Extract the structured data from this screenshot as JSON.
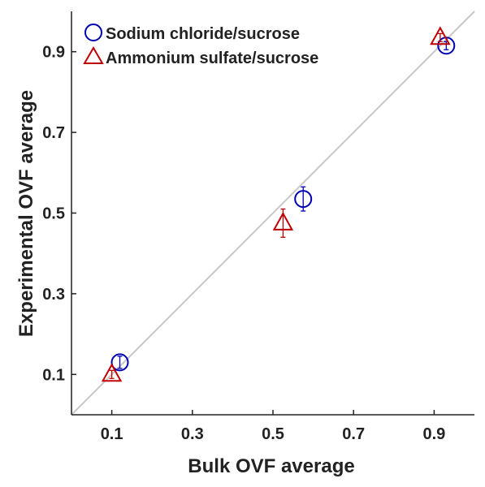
{
  "chart_data": {
    "type": "scatter",
    "xlabel": "Bulk OVF average",
    "ylabel": "Experimental  OVF  average",
    "xlim": [
      0,
      1
    ],
    "ylim": [
      0,
      1
    ],
    "xticks": [
      "0.1",
      "0.3",
      "0.5",
      "0.7",
      "0.9"
    ],
    "yticks": [
      "0.1",
      "0.3",
      "0.5",
      "0.7",
      "0.9"
    ],
    "grid": false,
    "legend_position": "top-left",
    "reference_line": {
      "label": "",
      "slope": 1,
      "intercept": 0,
      "color": "#c8c8c8"
    },
    "series": [
      {
        "name": "Sodium chloride/sucrose",
        "marker": "circle",
        "color": "#0000b4",
        "points": [
          {
            "x": 0.12,
            "y": 0.13,
            "err": 0.015
          },
          {
            "x": 0.575,
            "y": 0.535,
            "err": 0.03
          },
          {
            "x": 0.93,
            "y": 0.915,
            "err": 0.01
          }
        ]
      },
      {
        "name": "Ammonium sulfate/sucrose",
        "marker": "triangle",
        "color": "#c00000",
        "points": [
          {
            "x": 0.1,
            "y": 0.1,
            "err": 0.01
          },
          {
            "x": 0.525,
            "y": 0.475,
            "err": 0.035
          },
          {
            "x": 0.915,
            "y": 0.935,
            "err": 0.01
          }
        ]
      }
    ]
  }
}
